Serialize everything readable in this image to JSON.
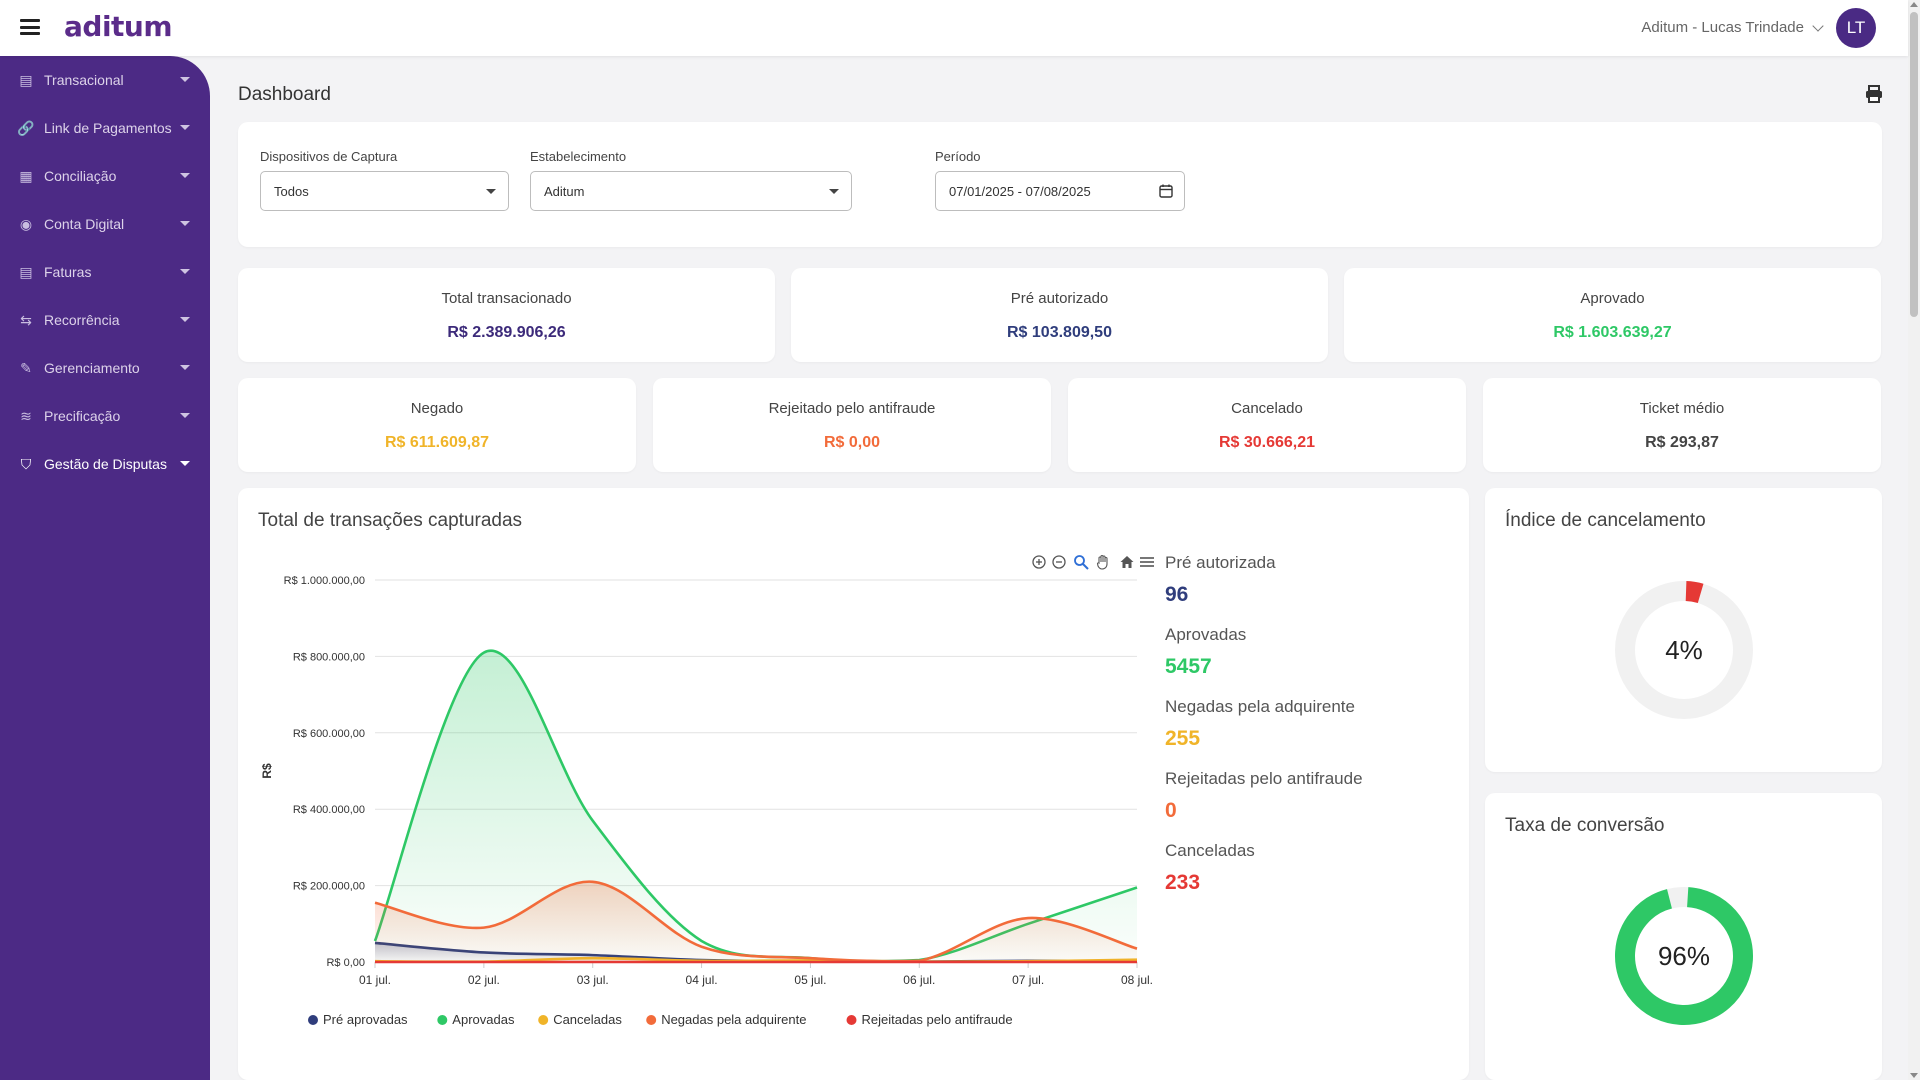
{
  "app": {
    "logo": "aditum",
    "user_label": "Aditum - Lucas Trindade",
    "avatar_initials": "LT"
  },
  "sidebar": {
    "items": [
      {
        "label": "Transacional",
        "icon": "file-icon"
      },
      {
        "label": "Link de Pagamentos",
        "icon": "link-icon"
      },
      {
        "label": "Conciliação",
        "icon": "calendar-check-icon"
      },
      {
        "label": "Conta Digital",
        "icon": "wallet-icon"
      },
      {
        "label": "Faturas",
        "icon": "invoice-icon"
      },
      {
        "label": "Recorrência",
        "icon": "repeat-icon"
      },
      {
        "label": "Gerenciamento",
        "icon": "wrench-icon"
      },
      {
        "label": "Precificação",
        "icon": "coins-icon"
      },
      {
        "label": "Gestão de Disputas",
        "icon": "shield-icon",
        "active": true
      }
    ]
  },
  "page": {
    "title": "Dashboard"
  },
  "filters": {
    "devices_label": "Dispositivos de Captura",
    "devices_value": "Todos",
    "establishment_label": "Estabelecimento",
    "establishment_value": "Aditum",
    "period_label": "Período",
    "period_value": "07/01/2025 - 07/08/2025"
  },
  "stats_row1": [
    {
      "title": "Total transacionado",
      "value": "R$ 2.389.906,26",
      "color": "#3c2a7a"
    },
    {
      "title": "Pré autorizado",
      "value": "R$ 103.809,50",
      "color": "#2f3d7c"
    },
    {
      "title": "Aprovado",
      "value": "R$ 1.603.639,27",
      "color": "#2ec866"
    }
  ],
  "stats_row2": [
    {
      "title": "Negado",
      "value": "R$ 611.609,87",
      "color": "#f0b429"
    },
    {
      "title": "Rejeitado pelo antifraude",
      "value": "R$ 0,00",
      "color": "#f26b3a"
    },
    {
      "title": "Cancelado",
      "value": "R$ 30.666,21",
      "color": "#e53935"
    },
    {
      "title": "Ticket médio",
      "value": "R$ 293,87",
      "color": "#444444"
    }
  ],
  "transactions": {
    "title": "Total de transações capturadas",
    "summary": [
      {
        "label": "Pré autorizada",
        "value": "96",
        "color": "#2f3d7c"
      },
      {
        "label": "Aprovadas",
        "value": "5457",
        "color": "#2ec866"
      },
      {
        "label": "Negadas pela adquirente",
        "value": "255",
        "color": "#f0b429"
      },
      {
        "label": "Rejeitadas pelo antifraude",
        "value": "0",
        "color": "#f26b3a"
      },
      {
        "label": "Canceladas",
        "value": "233",
        "color": "#e53935"
      }
    ]
  },
  "chart_data": {
    "type": "area",
    "x": [
      "01 jul.",
      "02 jul.",
      "03 jul.",
      "04 jul.",
      "05 jul.",
      "06 jul.",
      "07 jul.",
      "08 jul."
    ],
    "ylabel": "R$",
    "ylim": [
      0,
      1000000
    ],
    "yticks": [
      "R$ 0,00",
      "R$ 200.000,00",
      "R$ 400.000,00",
      "R$ 600.000,00",
      "R$ 800.000,00",
      "R$ 1.000.000,00"
    ],
    "grid": true,
    "legend_position": "bottom",
    "series": [
      {
        "name": "Pré aprovadas",
        "color": "#2f3d7c",
        "values": [
          50000,
          25000,
          18000,
          5000,
          2000,
          1000,
          3000,
          2000
        ]
      },
      {
        "name": "Aprovadas",
        "color": "#2ec866",
        "values": [
          55000,
          810000,
          370000,
          55000,
          10000,
          5000,
          100000,
          195000
        ]
      },
      {
        "name": "Canceladas",
        "color": "#f0b429",
        "values": [
          2000,
          1000,
          10000,
          3000,
          4000,
          1000,
          2000,
          6000
        ]
      },
      {
        "name": "Negadas pela adquirente",
        "color": "#f26b3a",
        "values": [
          155000,
          90000,
          210000,
          40000,
          10000,
          3000,
          115000,
          35000
        ]
      },
      {
        "name": "Rejeitadas pelo antifraude",
        "color": "#e53935",
        "values": [
          0,
          0,
          0,
          0,
          0,
          0,
          0,
          0
        ]
      }
    ]
  },
  "cancel_index": {
    "title": "Índice de cancelamento",
    "value_text": "4%",
    "fraction": 0.04,
    "color": "#e53935"
  },
  "conversion": {
    "title": "Taxa de conversão",
    "value_text": "96%",
    "fraction": 0.96,
    "color": "#2ec866"
  }
}
